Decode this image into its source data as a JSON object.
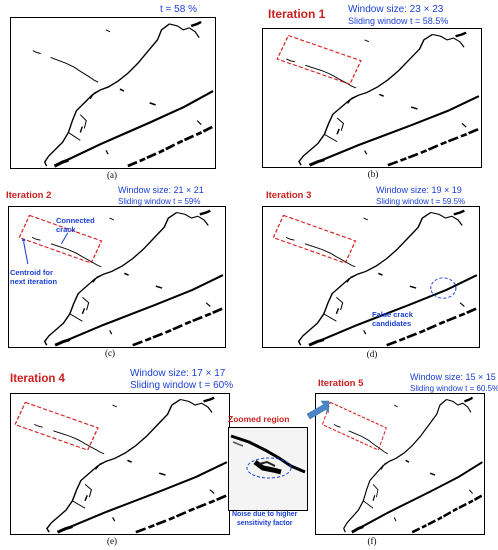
{
  "panels": {
    "a": {
      "caption": "(a)",
      "threshold": "t = 58 %"
    },
    "b": {
      "caption": "(b)",
      "title": "Iteration 1",
      "window_size": "Window size: 23 × 23",
      "sliding": "Sliding window t = 58.5%"
    },
    "c": {
      "caption": "(c)",
      "title": "Iteration 2",
      "window_size": "Window size: 21 × 21",
      "sliding": "Sliding window t = 59%",
      "annotation_connected": "Connected\ncrack",
      "annotation_centroid": "Centroid for\nnext iteration"
    },
    "d": {
      "caption": "(d)",
      "title": "Iteration 3",
      "window_size": "Window size: 19 × 19",
      "sliding": "Sliding window t = 59.5%",
      "annotation_false": "False crack\ncandidates"
    },
    "e": {
      "caption": "(e)",
      "title": "Iteration 4",
      "window_size": "Window size:  17 × 17",
      "sliding": "Sliding window t = 60%"
    },
    "f": {
      "caption": "(f)",
      "title": "Iteration 5",
      "window_size": "Window size: 15 × 15",
      "sliding": "Sliding window t = 60.5%",
      "zoom_title": "Zoomed region",
      "annotation_noise": "Noise due to higher\nsensitivity factor"
    }
  },
  "colors": {
    "title_red": "#cc1f1f",
    "annotation_blue": "#1a3fd6",
    "highlight_arrow": "#4a86c5"
  }
}
